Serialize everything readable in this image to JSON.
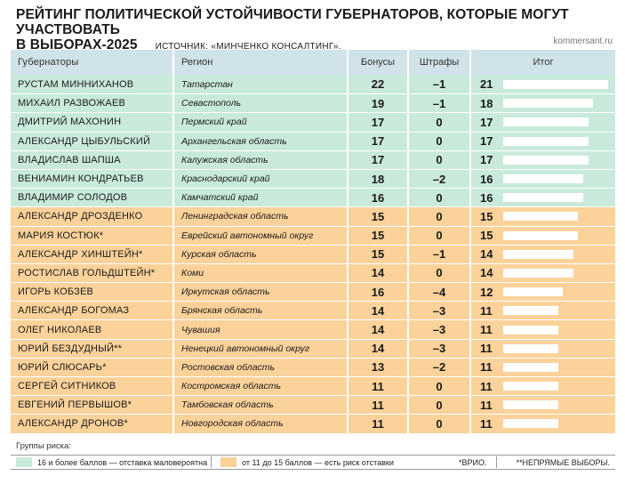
{
  "header": {
    "title_line1": "РЕЙТИНГ ПОЛИТИЧЕСКОЙ УСТОЙЧИВОСТИ ГУБЕРНАТОРОВ, КОТОРЫЕ МОГУТ УЧАСТВОВАТЬ",
    "title_line2": "В ВЫБОРАХ-2025",
    "source": "ИСТОЧНИК: «МИНЧЕНКО КОНСАЛТИНГ».",
    "site": "kommersant.ru"
  },
  "columns": {
    "name": "Губернаторы",
    "region": "Регион",
    "bonus": "Бонусы",
    "fine": "Штрафы",
    "total": "Итог"
  },
  "colors": {
    "header": "#cfe3e8",
    "group_high": "#c9eadb",
    "group_risk": "#fbd29a",
    "bar": "#ffffff"
  },
  "chart_data": {
    "type": "table",
    "title": "РЕЙТИНГ ПОЛИТИЧЕСКОЙ УСТОЙЧИВОСТИ ГУБЕРНАТОРОВ, КОТОРЫЕ МОГУТ УЧАСТВОВАТЬ В ВЫБОРАХ-2025",
    "total_scale_max": 21,
    "rows": [
      {
        "name": "РУСТАМ МИННИХАНОВ",
        "region": "Татарстан",
        "bonus": "22",
        "fine": "–1",
        "total": "21",
        "total_value": 21,
        "group": "green"
      },
      {
        "name": "МИХАИЛ РАЗВОЖАЕВ",
        "region": "Севастополь",
        "bonus": "19",
        "fine": "–1",
        "total": "18",
        "total_value": 18,
        "group": "green"
      },
      {
        "name": "ДМИТРИЙ МАХОНИН",
        "region": "Пермский край",
        "bonus": "17",
        "fine": "0",
        "total": "17",
        "total_value": 17,
        "group": "green"
      },
      {
        "name": "АЛЕКСАНДР ЦЫБУЛЬСКИЙ",
        "region": "Архангельская область",
        "bonus": "17",
        "fine": "0",
        "total": "17",
        "total_value": 17,
        "group": "green"
      },
      {
        "name": "ВЛАДИСЛАВ ШАПША",
        "region": "Калужская область",
        "bonus": "17",
        "fine": "0",
        "total": "17",
        "total_value": 17,
        "group": "green"
      },
      {
        "name": "ВЕНИАМИН КОНДРАТЬЕВ",
        "region": "Краснодарский край",
        "bonus": "18",
        "fine": "–2",
        "total": "16",
        "total_value": 16,
        "group": "green"
      },
      {
        "name": "ВЛАДИМИР СОЛОДОВ",
        "region": "Камчатский край",
        "bonus": "16",
        "fine": "0",
        "total": "16",
        "total_value": 16,
        "group": "green"
      },
      {
        "name": "АЛЕКСАНДР ДРОЗДЕНКО",
        "region": "Ленинградская область",
        "bonus": "15",
        "fine": "0",
        "total": "15",
        "total_value": 15,
        "group": "orange"
      },
      {
        "name": "МАРИЯ КОСТЮК*",
        "region": "Еврейский автономный округ",
        "bonus": "15",
        "fine": "0",
        "total": "15",
        "total_value": 15,
        "group": "orange"
      },
      {
        "name": "АЛЕКСАНДР ХИНШТЕЙН*",
        "region": "Курская область",
        "bonus": "15",
        "fine": "–1",
        "total": "14",
        "total_value": 14,
        "group": "orange"
      },
      {
        "name": "РОСТИСЛАВ ГОЛЬДШТЕЙН*",
        "region": "Коми",
        "bonus": "14",
        "fine": "0",
        "total": "14",
        "total_value": 14,
        "group": "orange"
      },
      {
        "name": "ИГОРЬ КОБЗЕВ",
        "region": "Иркутская область",
        "bonus": "16",
        "fine": "–4",
        "total": "12",
        "total_value": 12,
        "group": "orange"
      },
      {
        "name": "АЛЕКСАНДР БОГОМАЗ",
        "region": "Брянская область",
        "bonus": "14",
        "fine": "–3",
        "total": "11",
        "total_value": 11,
        "group": "orange"
      },
      {
        "name": "ОЛЕГ НИКОЛАЕВ",
        "region": "Чувашия",
        "bonus": "14",
        "fine": "–3",
        "total": "11",
        "total_value": 11,
        "group": "orange"
      },
      {
        "name": "ЮРИЙ БЕЗДУДНЫЙ**",
        "region": "Ненецкий автономный округ",
        "bonus": "14",
        "fine": "–3",
        "total": "11",
        "total_value": 11,
        "group": "orange"
      },
      {
        "name": "ЮРИЙ СЛЮСАРЬ*",
        "region": "Ростовская область",
        "bonus": "13",
        "fine": "–2",
        "total": "11",
        "total_value": 11,
        "group": "orange"
      },
      {
        "name": "СЕРГЕЙ СИТНИКОВ",
        "region": "Костромская область",
        "bonus": "11",
        "fine": "0",
        "total": "11",
        "total_value": 11,
        "group": "orange"
      },
      {
        "name": "ЕВГЕНИЙ ПЕРВЫШОВ*",
        "region": "Тамбовская область",
        "bonus": "11",
        "fine": "0",
        "total": "11",
        "total_value": 11,
        "group": "orange"
      },
      {
        "name": "АЛЕКСАНДР ДРОНОВ*",
        "region": "Новгородская область",
        "bonus": "11",
        "fine": "0",
        "total": "11",
        "total_value": 11,
        "group": "orange"
      }
    ]
  },
  "legend": {
    "label": "Группы риска:",
    "green": "16 и более баллов — отставка маловероятна",
    "orange": "от 11 до 15 баллов — есть риск отставки",
    "note_vrio": "*ВРИО.",
    "note_indirect": "**НЕПРЯМЫЕ ВЫБОРЫ."
  }
}
